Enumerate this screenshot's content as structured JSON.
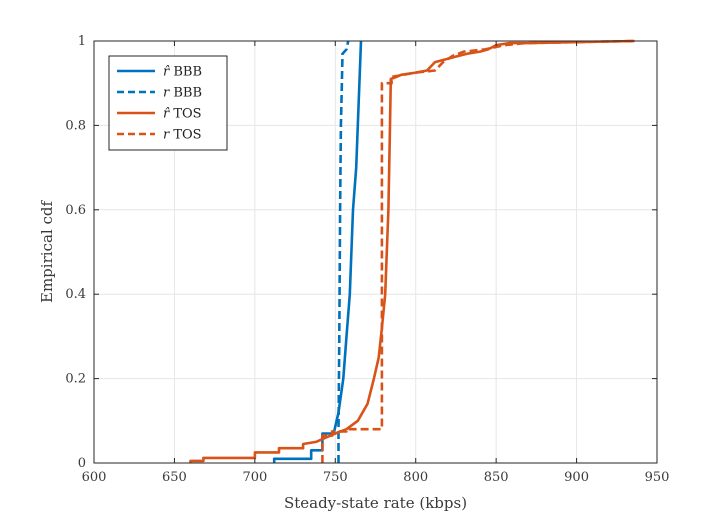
{
  "chart_data": {
    "type": "line",
    "title": "",
    "xlabel": "Steady-state rate (kbps)",
    "ylabel": "Empirical cdf",
    "xlim": [
      600,
      950
    ],
    "ylim": [
      0,
      1
    ],
    "xticks": [
      600,
      650,
      700,
      750,
      800,
      850,
      900,
      950
    ],
    "yticks": [
      0,
      0.2,
      0.4,
      0.6,
      0.8,
      1
    ],
    "grid": true,
    "legend_position": "top-left",
    "series": [
      {
        "name": "r̂ BBB",
        "legend_var": "r̂",
        "legend_text": "BBB",
        "color": "#0072BD",
        "dash": "solid",
        "points": [
          [
            712,
            0
          ],
          [
            712,
            0.01
          ],
          [
            735,
            0.01
          ],
          [
            735,
            0.03
          ],
          [
            742,
            0.03
          ],
          [
            742,
            0.07
          ],
          [
            749,
            0.07
          ],
          [
            752,
            0.12
          ],
          [
            755,
            0.2
          ],
          [
            757,
            0.3
          ],
          [
            759,
            0.4
          ],
          [
            760,
            0.5
          ],
          [
            761,
            0.6
          ],
          [
            763,
            0.7
          ],
          [
            764,
            0.8
          ],
          [
            765,
            0.9
          ],
          [
            766,
            1.0
          ]
        ]
      },
      {
        "name": "r BBB",
        "legend_var": "r",
        "legend_text": "BBB",
        "color": "#0072BD",
        "dash": "dashed",
        "points": [
          [
            752,
            0
          ],
          [
            752,
            0.08
          ],
          [
            752.5,
            0.3
          ],
          [
            753,
            0.6
          ],
          [
            753.5,
            0.8
          ],
          [
            754,
            0.88
          ],
          [
            754.5,
            0.97
          ],
          [
            757,
            0.98
          ],
          [
            758,
            1.0
          ]
        ]
      },
      {
        "name": "r̂ TOS",
        "legend_var": "r̂",
        "legend_text": "TOS",
        "color": "#D95319",
        "dash": "solid",
        "points": [
          [
            660,
            0
          ],
          [
            660,
            0.005
          ],
          [
            668,
            0.005
          ],
          [
            668,
            0.012
          ],
          [
            700,
            0.012
          ],
          [
            700,
            0.025
          ],
          [
            715,
            0.025
          ],
          [
            715,
            0.035
          ],
          [
            730,
            0.035
          ],
          [
            730,
            0.045
          ],
          [
            738,
            0.05
          ],
          [
            744,
            0.06
          ],
          [
            750,
            0.07
          ],
          [
            757,
            0.08
          ],
          [
            764,
            0.1
          ],
          [
            770,
            0.14
          ],
          [
            774,
            0.2
          ],
          [
            777,
            0.25
          ],
          [
            779,
            0.32
          ],
          [
            781,
            0.4
          ],
          [
            782,
            0.5
          ],
          [
            783,
            0.6
          ],
          [
            783.5,
            0.7
          ],
          [
            784,
            0.8
          ],
          [
            784.5,
            0.91
          ],
          [
            788,
            0.915
          ],
          [
            791,
            0.92
          ],
          [
            800,
            0.925
          ],
          [
            807,
            0.93
          ],
          [
            812,
            0.95
          ],
          [
            817,
            0.955
          ],
          [
            822,
            0.96
          ],
          [
            827,
            0.965
          ],
          [
            832,
            0.97
          ],
          [
            840,
            0.975
          ],
          [
            845,
            0.98
          ],
          [
            850,
            0.99
          ],
          [
            858,
            0.995
          ],
          [
            870,
            0.995
          ],
          [
            936,
            1.0
          ]
        ]
      },
      {
        "name": "r TOS",
        "legend_var": "r",
        "legend_text": "TOS",
        "color": "#D95319",
        "dash": "dashed",
        "points": [
          [
            742,
            0
          ],
          [
            742,
            0.065
          ],
          [
            748,
            0.065
          ],
          [
            748,
            0.075
          ],
          [
            757,
            0.075
          ],
          [
            757,
            0.08
          ],
          [
            779,
            0.08
          ],
          [
            779,
            0.9
          ],
          [
            785,
            0.9
          ],
          [
            785,
            0.915
          ],
          [
            800,
            0.925
          ],
          [
            812,
            0.93
          ],
          [
            817,
            0.95
          ],
          [
            823,
            0.965
          ],
          [
            830,
            0.975
          ],
          [
            843,
            0.98
          ],
          [
            855,
            0.99
          ],
          [
            868,
            0.995
          ],
          [
            936,
            1.0
          ]
        ]
      }
    ]
  }
}
